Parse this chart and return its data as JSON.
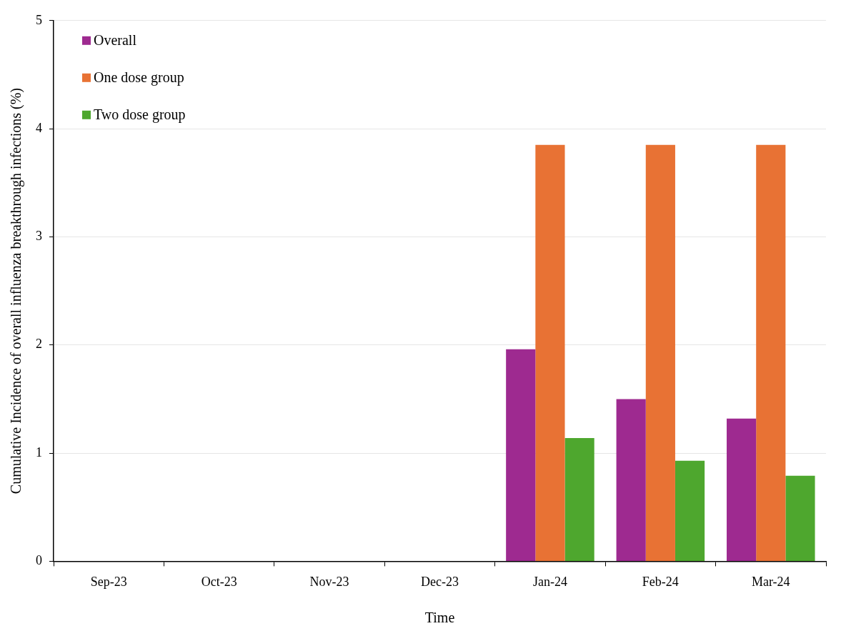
{
  "chart_data": {
    "type": "bar",
    "xlabel": "Time",
    "ylabel": "Cumulative Incidence of overall influenza breakthrough infections (%)",
    "categories": [
      "Sep-23",
      "Oct-23",
      "Nov-23",
      "Dec-23",
      "Jan-24",
      "Feb-24",
      "Mar-24"
    ],
    "series": [
      {
        "name": "Overall",
        "color": "#9e2a90",
        "values": [
          0,
          0,
          0,
          0,
          1.96,
          1.5,
          1.32
        ]
      },
      {
        "name": "One dose group",
        "color": "#e87234",
        "values": [
          0,
          0,
          0,
          0,
          3.85,
          3.85,
          3.85
        ]
      },
      {
        "name": "Two dose group",
        "color": "#4ea72e",
        "values": [
          0,
          0,
          0,
          0,
          1.14,
          0.93,
          0.79
        ]
      }
    ],
    "ylim": [
      0,
      5
    ],
    "yticks": [
      0,
      1,
      2,
      3,
      4,
      5
    ],
    "grid": "y",
    "legend": "top left"
  }
}
